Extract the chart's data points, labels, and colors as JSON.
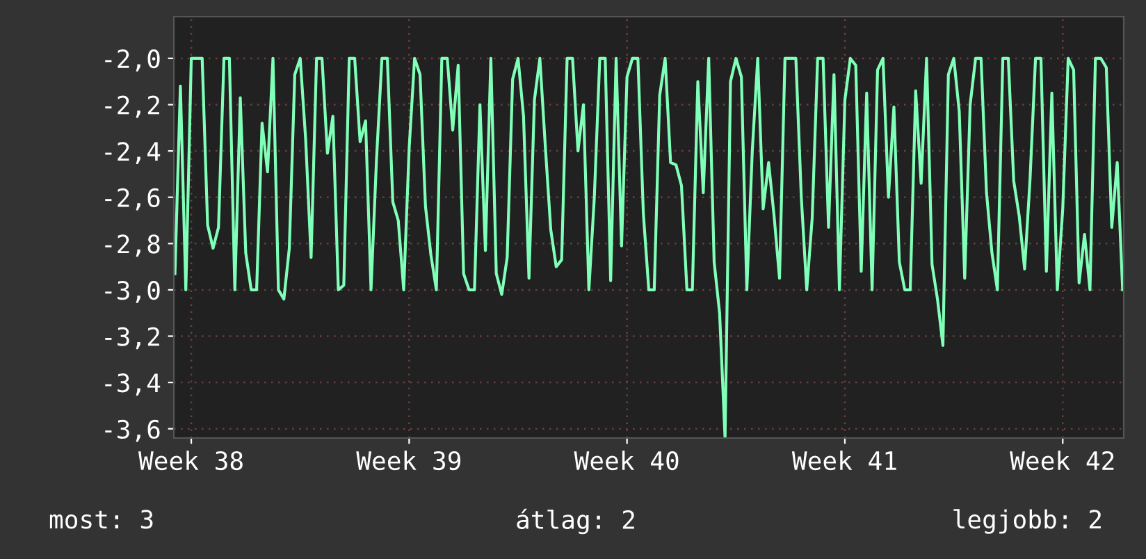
{
  "chart_data": {
    "type": "line",
    "categories": [
      null,
      null,
      null,
      "Week 38",
      null,
      null,
      null,
      null,
      null,
      null,
      null,
      null,
      null,
      null,
      null,
      null,
      null,
      null,
      null,
      null,
      null,
      null,
      null,
      null,
      null,
      null,
      null,
      null,
      null,
      null,
      null,
      null,
      null,
      null,
      null,
      null,
      null,
      null,
      null,
      null,
      null,
      null,
      null,
      "Week 39",
      null,
      null,
      null,
      null,
      null,
      null,
      null,
      null,
      null,
      null,
      null,
      null,
      null,
      null,
      null,
      null,
      null,
      null,
      null,
      null,
      null,
      null,
      null,
      null,
      null,
      null,
      null,
      null,
      null,
      null,
      null,
      null,
      null,
      null,
      null,
      null,
      null,
      null,
      null,
      "Week 40",
      null,
      null,
      null,
      null,
      null,
      null,
      null,
      null,
      null,
      null,
      null,
      null,
      null,
      null,
      null,
      null,
      null,
      null,
      null,
      null,
      null,
      null,
      null,
      null,
      null,
      null,
      null,
      null,
      null,
      null,
      null,
      null,
      null,
      null,
      null,
      null,
      null,
      null,
      null,
      "Week 41",
      null,
      null,
      null,
      null,
      null,
      null,
      null,
      null,
      null,
      null,
      null,
      null,
      null,
      null,
      null,
      null,
      null,
      null,
      null,
      null,
      null,
      null,
      null,
      null,
      null,
      null,
      null,
      null,
      null,
      null,
      null,
      null,
      null,
      null,
      null,
      null,
      null,
      null,
      null,
      "Week 42",
      null,
      null,
      null,
      null,
      null,
      null,
      null,
      null,
      null,
      null,
      null
    ],
    "series": [
      {
        "color": "#80ffb8",
        "values": [
          -2.93,
          -2.12,
          -3.0,
          -2.0,
          -2.0,
          -2.0,
          -2.72,
          -2.82,
          -2.73,
          -2.0,
          -2.0,
          -3.0,
          -2.17,
          -2.84,
          -3.0,
          -3.0,
          -2.28,
          -2.49,
          -2.0,
          -3.0,
          -3.04,
          -2.82,
          -2.07,
          -2.0,
          -2.35,
          -2.86,
          -2.0,
          -2.0,
          -2.41,
          -2.25,
          -3.0,
          -2.98,
          -2.0,
          -2.0,
          -2.36,
          -2.27,
          -3.0,
          -2.44,
          -2.0,
          -2.0,
          -2.62,
          -2.7,
          -3.0,
          -2.39,
          -2.0,
          -2.07,
          -2.64,
          -2.85,
          -3.0,
          -2.0,
          -2.0,
          -2.31,
          -2.03,
          -2.93,
          -3.0,
          -3.0,
          -2.2,
          -2.83,
          -2.0,
          -2.93,
          -3.02,
          -2.86,
          -2.09,
          -2.0,
          -2.25,
          -2.95,
          -2.18,
          -2.0,
          -2.38,
          -2.74,
          -2.9,
          -2.87,
          -2.0,
          -2.0,
          -2.4,
          -2.2,
          -3.0,
          -2.6,
          -2.0,
          -2.0,
          -2.96,
          -2.0,
          -2.81,
          -2.08,
          -2.0,
          -2.0,
          -2.67,
          -3.0,
          -3.0,
          -2.16,
          -2.0,
          -2.45,
          -2.46,
          -2.55,
          -3.0,
          -3.0,
          -2.1,
          -2.58,
          -2.0,
          -2.88,
          -3.1,
          -3.64,
          -2.1,
          -2.0,
          -2.08,
          -3.0,
          -2.4,
          -2.0,
          -2.65,
          -2.45,
          -2.68,
          -2.95,
          -2.0,
          -2.0,
          -2.0,
          -2.6,
          -3.0,
          -2.69,
          -2.0,
          -2.0,
          -2.73,
          -2.07,
          -3.0,
          -2.18,
          -2.0,
          -2.03,
          -2.92,
          -2.15,
          -3.0,
          -2.05,
          -2.0,
          -2.6,
          -2.21,
          -2.88,
          -3.0,
          -3.0,
          -2.14,
          -2.54,
          -2.0,
          -2.89,
          -3.04,
          -3.24,
          -2.07,
          -2.0,
          -2.23,
          -2.95,
          -2.2,
          -2.0,
          -2.0,
          -2.58,
          -2.84,
          -3.0,
          -2.0,
          -2.0,
          -2.53,
          -2.68,
          -2.91,
          -2.52,
          -2.0,
          -2.0,
          -2.92,
          -2.15,
          -3.0,
          -2.65,
          -2.0,
          -2.05,
          -2.97,
          -2.76,
          -3.0,
          -2.0,
          -2.0,
          -2.04,
          -2.73,
          -2.45,
          -3.0
        ]
      }
    ],
    "ylim": [
      -3.64,
      -1.82
    ],
    "yticks": [
      {
        "value": -3.6,
        "label": "-3,6"
      },
      {
        "value": -3.4,
        "label": "-3,4"
      },
      {
        "value": -3.2,
        "label": "-3,2"
      },
      {
        "value": -3.0,
        "label": "-3,0"
      },
      {
        "value": -2.8,
        "label": "-2,8"
      },
      {
        "value": -2.6,
        "label": "-2,6"
      },
      {
        "value": -2.4,
        "label": "-2,4"
      },
      {
        "value": -2.2,
        "label": "-2,2"
      },
      {
        "value": -2.0,
        "label": "-2,0"
      }
    ],
    "grid": true,
    "annotations": [
      "most: 3",
      "átlag: 2",
      "legjobb: 2"
    ]
  }
}
